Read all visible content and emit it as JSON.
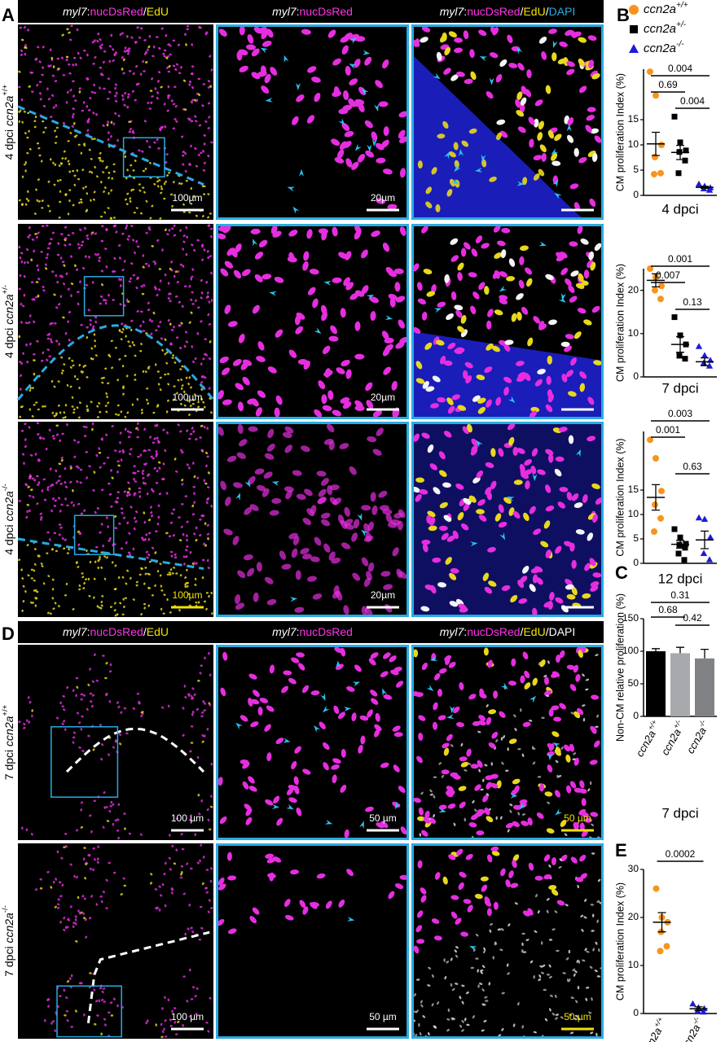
{
  "figure": {
    "panel_labels": [
      "A",
      "B",
      "C",
      "D",
      "E"
    ],
    "a_headers": [
      [
        {
          "text": "myl7",
          "color": "#ffffff",
          "italic": true
        },
        {
          "text": ":",
          "color": "#ffffff"
        },
        {
          "text": "nucDsRed",
          "color": "#ff33e6"
        },
        {
          "text": "/",
          "color": "#ffffff"
        },
        {
          "text": "EdU",
          "color": "#f2e200"
        }
      ],
      [
        {
          "text": "myl7",
          "color": "#ffffff",
          "italic": true
        },
        {
          "text": ":",
          "color": "#ffffff"
        },
        {
          "text": "nucDsRed",
          "color": "#ff33e6"
        }
      ],
      [
        {
          "text": "myl7",
          "color": "#ffffff",
          "italic": true
        },
        {
          "text": ":",
          "color": "#ffffff"
        },
        {
          "text": "nucDsRed",
          "color": "#ff33e6"
        },
        {
          "text": "/",
          "color": "#ffffff"
        },
        {
          "text": "EdU",
          "color": "#f2e200"
        },
        {
          "text": "/",
          "color": "#ffffff"
        },
        {
          "text": "DAPI",
          "color": "#29abe2"
        }
      ]
    ],
    "a_rows": [
      "4 dpci ccn2a+/+",
      "4 dpci ccn2a+/-",
      "4 dpci ccn2a-/-"
    ],
    "a_scale_bars": [
      [
        "100µm",
        "20µm"
      ],
      [
        "100µm",
        "20µm"
      ],
      [
        "100µm",
        "20µm"
      ]
    ],
    "d_headers": [
      [
        {
          "text": "myl7",
          "color": "#ffffff",
          "italic": true
        },
        {
          "text": ":",
          "color": "#ffffff"
        },
        {
          "text": "nucDsRed",
          "color": "#ff33e6"
        },
        {
          "text": "/",
          "color": "#ffffff"
        },
        {
          "text": "EdU",
          "color": "#f2e200"
        }
      ],
      [
        {
          "text": "myl7",
          "color": "#ffffff",
          "italic": true
        },
        {
          "text": ":",
          "color": "#ffffff"
        },
        {
          "text": "nucDsRed",
          "color": "#ff33e6"
        }
      ],
      [
        {
          "text": "myl7",
          "color": "#ffffff",
          "italic": true
        },
        {
          "text": ":",
          "color": "#ffffff"
        },
        {
          "text": "nucDsRed",
          "color": "#ff33e6"
        },
        {
          "text": "/",
          "color": "#ffffff"
        },
        {
          "text": "EdU",
          "color": "#f2e200"
        },
        {
          "text": "/",
          "color": "#ffffff"
        },
        {
          "text": "DAPI",
          "color": "#ffffff"
        }
      ]
    ],
    "d_rows": [
      "7 dpci ccn2a+/+",
      "7 dpci ccn2a-/-"
    ],
    "d_scale_bars": [
      [
        "100 µm",
        "50 µm",
        "50 µm"
      ],
      [
        "100 µm",
        "50 µm",
        "50 µm"
      ]
    ]
  },
  "chart_data": [
    {
      "type": "scatter",
      "ylabel": "CM proliferation Index (%)",
      "xlabel": "4 dpci",
      "ylim": [
        0,
        25
      ],
      "yticks": [
        0,
        5,
        10,
        15
      ],
      "series": [
        {
          "name": "ccn2a+/+",
          "color": "#f7941d",
          "marker": "circle",
          "values": [
            24.5,
            19.8,
            10,
            7.6,
            4.4,
            4.2
          ],
          "mean": 10.2,
          "sem": 2.3
        },
        {
          "name": "ccn2a+/-",
          "color": "#000000",
          "marker": "square",
          "values": [
            15.6,
            10.5,
            8.9,
            8.6,
            6.9,
            4.4
          ],
          "mean": 8.5,
          "sem": 1.4
        },
        {
          "name": "ccn2a-/-",
          "color": "#1c1cd6",
          "marker": "triangle",
          "values": [
            2.2,
            1.8,
            1.5,
            1.3,
            1.0
          ],
          "mean": 1.6,
          "sem": 0.2
        }
      ],
      "comparisons": [
        {
          "pair": [
            0,
            2
          ],
          "label": "0.004"
        },
        {
          "pair": [
            0,
            1
          ],
          "label": "0.69"
        },
        {
          "pair": [
            1,
            2
          ],
          "label": "0.004"
        }
      ]
    },
    {
      "type": "scatter",
      "ylabel": "CM proliferation Index (%)",
      "xlabel": "7 dpci",
      "ylim": [
        0,
        25
      ],
      "yticks": [
        0,
        10,
        20
      ],
      "series": [
        {
          "color": "#f7941d",
          "marker": "circle",
          "values": [
            25,
            23,
            21,
            20,
            18
          ],
          "mean": 22.3,
          "sem": 1.5
        },
        {
          "color": "#000000",
          "marker": "square",
          "values": [
            13.8,
            9.6,
            7.5,
            4.9,
            4.2
          ],
          "mean": 7.5,
          "sem": 1.8
        },
        {
          "color": "#1c1cd6",
          "marker": "triangle",
          "values": [
            7,
            4.9,
            3.8,
            3.2,
            2.5
          ],
          "mean": 3.5,
          "sem": 0.9
        }
      ],
      "comparisons": [
        {
          "pair": [
            0,
            2
          ],
          "label": "0.001"
        },
        {
          "pair": [
            0,
            1
          ],
          "label": "0.007"
        },
        {
          "pair": [
            1,
            2
          ],
          "label": "0.13"
        }
      ]
    },
    {
      "type": "scatter",
      "ylabel": "CM proliferation Index (%)",
      "xlabel": "12 dpci",
      "ylim": [
        0,
        27
      ],
      "yticks": [
        0,
        5,
        10,
        15
      ],
      "series": [
        {
          "color": "#f7941d",
          "marker": "circle",
          "values": [
            25.3,
            21.5,
            14.8,
            12,
            9.2,
            6.5
          ],
          "mean": 13.5,
          "sem": 2.6
        },
        {
          "color": "#000000",
          "marker": "square",
          "values": [
            7,
            5.3,
            4,
            3.8,
            3.2,
            2,
            0.7
          ],
          "mean": 3.9,
          "sem": 0.8
        },
        {
          "color": "#1c1cd6",
          "marker": "triangle",
          "values": [
            9.3,
            9,
            5.3,
            2,
            0.7
          ],
          "mean": 4.8,
          "sem": 1.8
        }
      ],
      "comparisons": [
        {
          "pair": [
            0,
            2
          ],
          "label": "0.003"
        },
        {
          "pair": [
            0,
            1
          ],
          "label": "0.001"
        },
        {
          "pair": [
            1,
            2
          ],
          "label": "0.63"
        }
      ]
    },
    {
      "type": "bar",
      "ylabel": "Non-CM relative proliferation (%)",
      "xlabel": "7 dpci",
      "categories": [
        "ccn2a+/+",
        "ccn2a+/-",
        "ccn2a-/-"
      ],
      "values": [
        100,
        97,
        89
      ],
      "errors": [
        4,
        9,
        14
      ],
      "colors": [
        "#000000",
        "#a7a9ac",
        "#808285"
      ],
      "ylim": [
        0,
        150
      ],
      "yticks": [
        0,
        50,
        100,
        150
      ],
      "comparisons": [
        {
          "pair": [
            0,
            2
          ],
          "label": "0.31"
        },
        {
          "pair": [
            0,
            1
          ],
          "label": "0.68"
        },
        {
          "pair": [
            1,
            2
          ],
          "label": "0.42"
        }
      ]
    },
    {
      "type": "scatter",
      "ylabel": "CM proliferation Index (%)",
      "categories": [
        "ccn2a+/+",
        "ccn2a-/-"
      ],
      "ylim": [
        0,
        30
      ],
      "yticks": [
        0,
        10,
        20,
        30
      ],
      "series": [
        {
          "color": "#f7941d",
          "marker": "circle",
          "values": [
            26,
            20,
            19,
            17,
            14,
            13
          ],
          "mean": 19,
          "sem": 2
        },
        {
          "color": "#1c1cd6",
          "marker": "triangle",
          "values": [
            2,
            1.2,
            1,
            0.5,
            0.3
          ],
          "mean": 1,
          "sem": 0.4
        }
      ],
      "comparisons": [
        {
          "pair": [
            0,
            1
          ],
          "label": "0.0002"
        }
      ]
    }
  ]
}
